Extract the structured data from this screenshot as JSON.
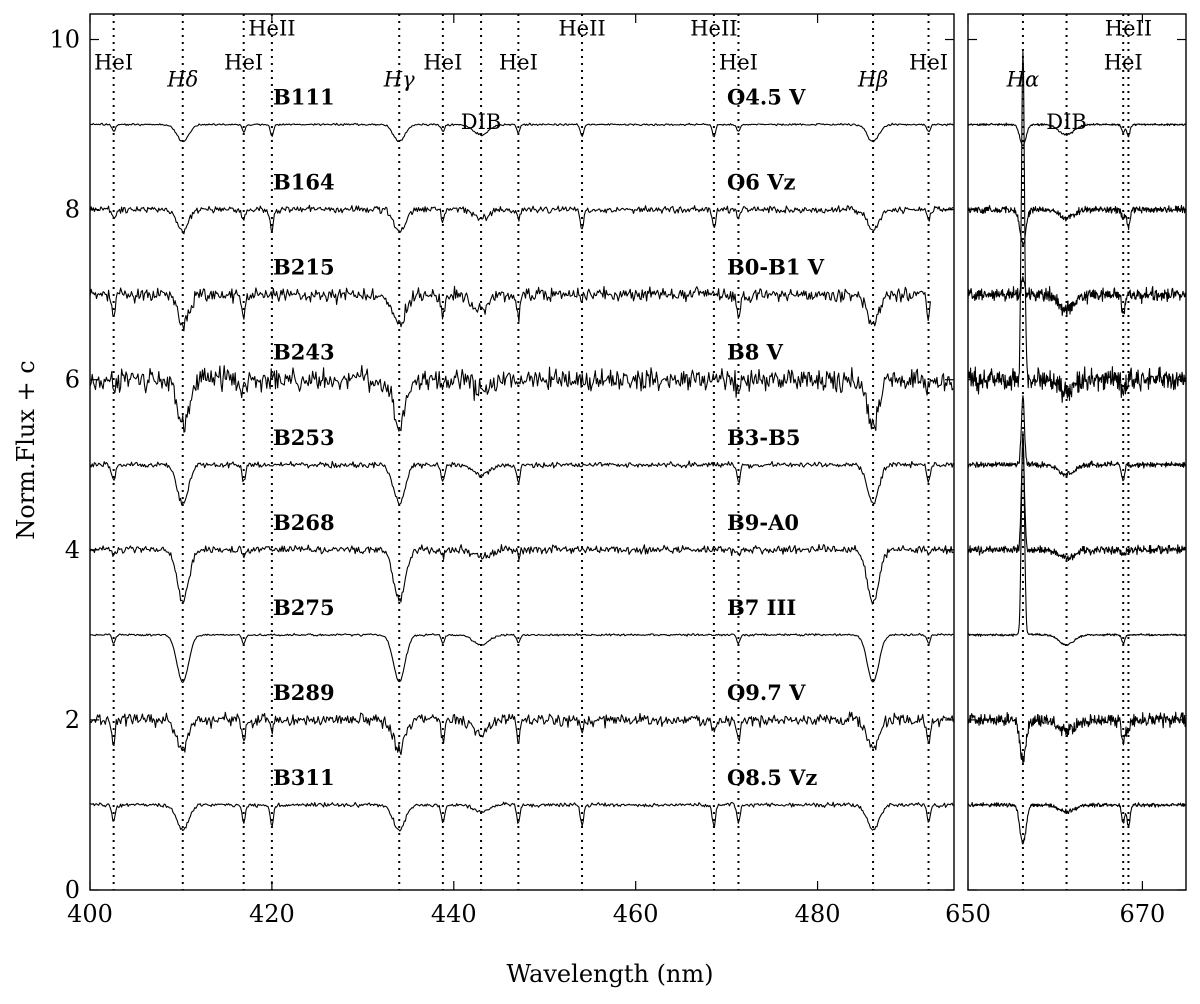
{
  "chart_data": {
    "type": "line",
    "title": "",
    "xlabel": "Wavelength (nm)",
    "ylabel": "Norm.Flux + c",
    "ylim": [
      0,
      10.3
    ],
    "yticks": [
      0,
      2,
      4,
      6,
      8,
      10
    ],
    "grid": false,
    "panels": [
      {
        "name": "blue",
        "xlim": [
          400,
          495
        ],
        "xticks": [
          400,
          420,
          440,
          460,
          480
        ]
      },
      {
        "name": "red",
        "xlim": [
          650,
          675
        ],
        "xticks": [
          650,
          670
        ]
      }
    ],
    "lines": [
      {
        "label": "HeI",
        "wl": 402.6,
        "panel": 0,
        "y": 9.65,
        "italic": false
      },
      {
        "label": "Hδ",
        "wl": 410.2,
        "panel": 0,
        "y": 9.45,
        "italic": true
      },
      {
        "label": "HeI",
        "wl": 416.9,
        "panel": 0,
        "y": 9.65,
        "italic": false
      },
      {
        "label": "HeII",
        "wl": 420.0,
        "panel": 0,
        "y": 10.05,
        "italic": false
      },
      {
        "label": "Hγ",
        "wl": 434.0,
        "panel": 0,
        "y": 9.45,
        "italic": true
      },
      {
        "label": "HeI",
        "wl": 438.8,
        "panel": 0,
        "y": 9.65,
        "italic": false
      },
      {
        "label": "DIB",
        "wl": 443.0,
        "panel": 0,
        "y": 8.95,
        "italic": false
      },
      {
        "label": "HeI",
        "wl": 447.1,
        "panel": 0,
        "y": 9.65,
        "italic": false
      },
      {
        "label": "HeII",
        "wl": 454.1,
        "panel": 0,
        "y": 10.05,
        "italic": false
      },
      {
        "label": "HeII",
        "wl": 468.6,
        "panel": 0,
        "y": 10.05,
        "italic": false
      },
      {
        "label": "HeI",
        "wl": 471.3,
        "panel": 0,
        "y": 9.65,
        "italic": false
      },
      {
        "label": "Hβ",
        "wl": 486.1,
        "panel": 0,
        "y": 9.45,
        "italic": true
      },
      {
        "label": "HeI",
        "wl": 492.2,
        "panel": 0,
        "y": 9.65,
        "italic": false
      },
      {
        "label": "Hα",
        "wl": 656.3,
        "panel": 1,
        "y": 9.45,
        "italic": true
      },
      {
        "label": "DIB",
        "wl": 661.3,
        "panel": 1,
        "y": 8.95,
        "italic": false
      },
      {
        "label": "HeII",
        "wl": 668.4,
        "panel": 1,
        "y": 10.05,
        "italic": false
      },
      {
        "label": "HeI",
        "wl": 667.8,
        "panel": 1,
        "y": 9.65,
        "italic": false
      }
    ],
    "series": [
      {
        "name": "B111",
        "sptype": "O4.5 V",
        "offset": 9,
        "noise": 0.015,
        "blue_end": 495,
        "depth_h": 0.2,
        "depth_hei": 0.09,
        "depth_heii": 0.14,
        "depth_dib": 0.12,
        "halpha": -0.25,
        "seed": 11
      },
      {
        "name": "B164",
        "sptype": "O6 Vz",
        "offset": 8,
        "noise": 0.05,
        "blue_end": 495,
        "depth_h": 0.25,
        "depth_hei": 0.12,
        "depth_heii": 0.22,
        "depth_dib": 0.1,
        "halpha": -0.4,
        "seed": 23
      },
      {
        "name": "B215",
        "sptype": "B0-B1 V",
        "offset": 7,
        "noise": 0.1,
        "blue_end": 492.5,
        "depth_h": 0.35,
        "depth_hei": 0.25,
        "depth_heii": 0.0,
        "depth_dib": 0.18,
        "halpha": 0.2,
        "seed": 37
      },
      {
        "name": "B243",
        "sptype": "B8 V",
        "offset": 6,
        "noise": 0.16,
        "blue_end": 495,
        "depth_h": 0.55,
        "depth_hei": 0.1,
        "depth_heii": 0.0,
        "depth_dib": 0.15,
        "halpha": 3.8,
        "seed": 41
      },
      {
        "name": "B253",
        "sptype": "B3-B5",
        "offset": 5,
        "noise": 0.04,
        "blue_end": 495,
        "depth_h": 0.45,
        "depth_hei": 0.2,
        "depth_heii": 0.0,
        "depth_dib": 0.12,
        "halpha": 0.8,
        "seed": 53
      },
      {
        "name": "B268",
        "sptype": "B9-A0",
        "offset": 4,
        "noise": 0.06,
        "blue_end": 495,
        "depth_h": 0.6,
        "depth_hei": 0.06,
        "depth_heii": 0.0,
        "depth_dib": 0.1,
        "halpha": 1.2,
        "seed": 67
      },
      {
        "name": "B275",
        "sptype": "B7 III",
        "offset": 3,
        "noise": 0.015,
        "blue_end": 495,
        "depth_h": 0.55,
        "depth_hei": 0.1,
        "depth_heii": 0.0,
        "depth_dib": 0.12,
        "halpha": 2.4,
        "seed": 71
      },
      {
        "name": "B289",
        "sptype": "O9.7 V",
        "offset": 2,
        "noise": 0.09,
        "blue_end": 495,
        "depth_h": 0.35,
        "depth_hei": 0.28,
        "depth_heii": 0.15,
        "depth_dib": 0.15,
        "halpha": -0.45,
        "seed": 83
      },
      {
        "name": "B311",
        "sptype": "O8.5 Vz",
        "offset": 1,
        "noise": 0.03,
        "blue_end": 495,
        "depth_h": 0.3,
        "depth_hei": 0.22,
        "depth_heii": 0.25,
        "depth_dib": 0.08,
        "halpha": -0.45,
        "seed": 97
      }
    ]
  }
}
